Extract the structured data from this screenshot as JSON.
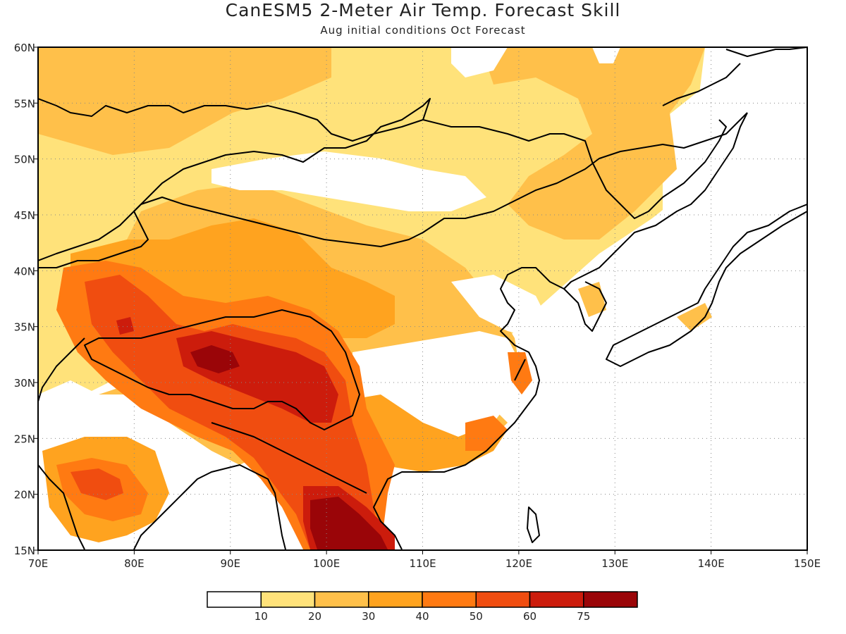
{
  "title": "CanESM5 2-Meter Air Temp. Forecast Skill",
  "subtitle": "Aug initial conditions  Oct Forecast",
  "map": {
    "lon_range": [
      70,
      150
    ],
    "lat_range": [
      15,
      60
    ],
    "lon_ticks": [
      "70E",
      "80E",
      "90E",
      "100E",
      "110E",
      "120E",
      "130E",
      "140E",
      "150E"
    ],
    "lat_ticks": [
      "15N",
      "20N",
      "25N",
      "30N",
      "35N",
      "40N",
      "45N",
      "50N",
      "55N",
      "60N"
    ],
    "gridlines": "dotted"
  },
  "legend": {
    "levels": [
      "10",
      "20",
      "30",
      "40",
      "50",
      "60",
      "75"
    ],
    "colors": [
      "#ffffff",
      "#ffe27a",
      "#ffc04a",
      "#ffa31f",
      "#ff7a12",
      "#f04d10",
      "#cc1c0c",
      "#9a0508"
    ]
  }
}
